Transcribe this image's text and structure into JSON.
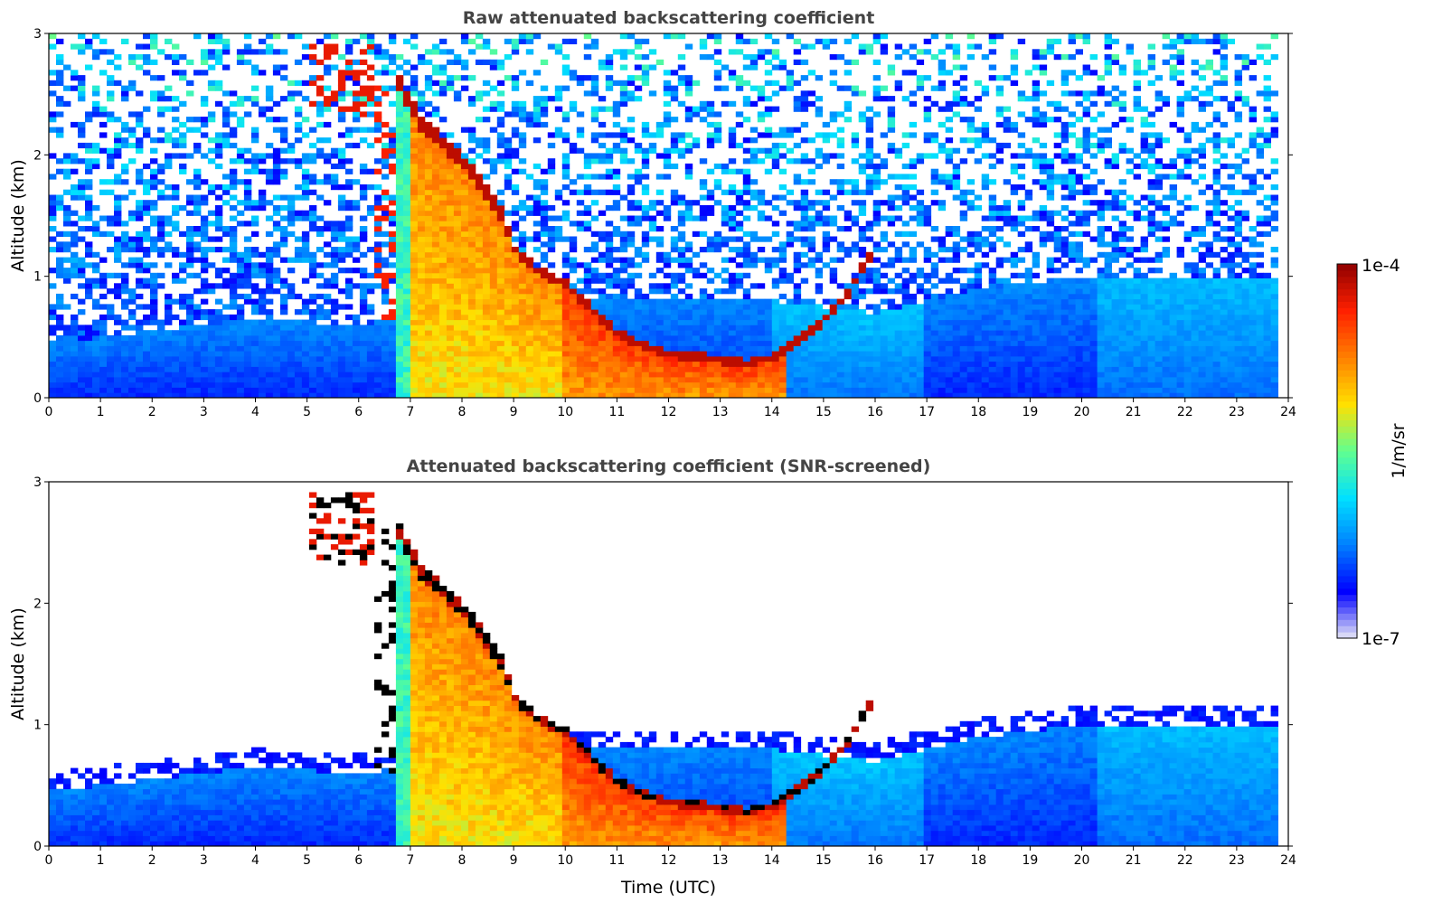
{
  "chart_data": [
    {
      "type": "heatmap",
      "title": "Raw attenuated backscattering coefficient",
      "xlabel": "",
      "ylabel": "Altitude (km)",
      "xlim": [
        0,
        24
      ],
      "ylim": [
        0,
        3
      ],
      "xticks": [
        "0",
        "1",
        "2",
        "3",
        "4",
        "5",
        "6",
        "7",
        "8",
        "9",
        "10",
        "11",
        "12",
        "13",
        "14",
        "15",
        "16",
        "17",
        "18",
        "19",
        "20",
        "21",
        "22",
        "23",
        "24"
      ],
      "yticks": [
        "0",
        "1",
        "2",
        "3"
      ],
      "data_end_hour": 23.8,
      "background_noise": true,
      "features": {
        "boundary_layer_top_km": [
          [
            0,
            0.45
          ],
          [
            2,
            0.55
          ],
          [
            4,
            0.65
          ],
          [
            6,
            0.6
          ],
          [
            8,
            0.7
          ],
          [
            10,
            0.8
          ],
          [
            14,
            0.8
          ],
          [
            16,
            0.7
          ],
          [
            18,
            0.9
          ],
          [
            20,
            1.0
          ],
          [
            22,
            1.0
          ],
          [
            23.8,
            1.0
          ]
        ],
        "cloud_base_km": [
          [
            6.7,
            2.6
          ],
          [
            7.2,
            2.2
          ],
          [
            8,
            1.9
          ],
          [
            8.7,
            1.5
          ],
          [
            9,
            1.2
          ],
          [
            9.5,
            1.0
          ],
          [
            10,
            0.9
          ],
          [
            10.5,
            0.7
          ],
          [
            11,
            0.5
          ],
          [
            11.5,
            0.4
          ],
          [
            12,
            0.33
          ],
          [
            13,
            0.28
          ],
          [
            13.5,
            0.25
          ],
          [
            14,
            0.3
          ],
          [
            14.5,
            0.45
          ],
          [
            15,
            0.6
          ],
          [
            15.5,
            0.85
          ],
          [
            16,
            1.2
          ]
        ],
        "elevated_layer": {
          "x_start": 5.1,
          "x_end": 6.3,
          "y_bottom_km": 2.3,
          "y_top_km": 2.9
        }
      }
    },
    {
      "type": "heatmap",
      "title": "Attenuated backscattering coefficient (SNR-screened)",
      "xlabel": "Time (UTC)",
      "ylabel": "Altitude (km)",
      "xlim": [
        0,
        24
      ],
      "ylim": [
        0,
        3
      ],
      "xticks": [
        "0",
        "1",
        "2",
        "3",
        "4",
        "5",
        "6",
        "7",
        "8",
        "9",
        "10",
        "11",
        "12",
        "13",
        "14",
        "15",
        "16",
        "17",
        "18",
        "19",
        "20",
        "21",
        "22",
        "23",
        "24"
      ],
      "yticks": [
        "0",
        "1",
        "2",
        "3"
      ],
      "data_end_hour": 23.8,
      "background_noise": false
    }
  ],
  "colorbar": {
    "label": "1/m/sr",
    "min_label": "1e-7",
    "max_label": "1e-4",
    "scale": "log",
    "colormap": [
      "#e6e6f5",
      "#0000ff",
      "#0080ff",
      "#00e0ff",
      "#60ff90",
      "#ffe000",
      "#ff8000",
      "#ff2000",
      "#900000"
    ]
  }
}
